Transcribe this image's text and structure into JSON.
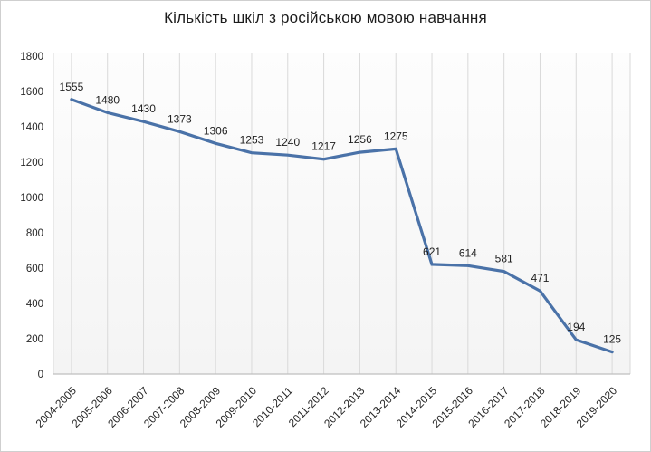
{
  "chart": {
    "title": "Кількість шкіл з російською мовою навчання"
  },
  "chart_data": {
    "type": "line",
    "title": "Кількість шкіл з російською мовою навчання",
    "categories": [
      "2004-2005",
      "2005-2006",
      "2006-2007",
      "2007-2008",
      "2008-2009",
      "2009-2010",
      "2010-2011",
      "2011-2012",
      "2012-2013",
      "2013-2014",
      "2014-2015",
      "2015-2016",
      "2016-2017",
      "2017-2018",
      "2018-2019",
      "2019-2020"
    ],
    "values": [
      1555,
      1480,
      1430,
      1373,
      1306,
      1253,
      1240,
      1217,
      1256,
      1275,
      621,
      614,
      581,
      471,
      194,
      125
    ],
    "xlabel": "",
    "ylabel": "",
    "ylim": [
      0,
      1800
    ],
    "yticks": [
      0,
      200,
      400,
      600,
      800,
      1000,
      1200,
      1400,
      1600,
      1800
    ],
    "grid": "vertical-only",
    "legend": "none",
    "data_labels": true,
    "colors": {
      "line": "#4a72a8",
      "data_label": "#1f1f1f",
      "tick_label": "#262626",
      "gridline": "#d9d9d9",
      "axis_line": "#bfbfbf",
      "plot_bg_top": "#fdfdfd",
      "plot_bg_bottom": "#f4f4f4"
    }
  }
}
